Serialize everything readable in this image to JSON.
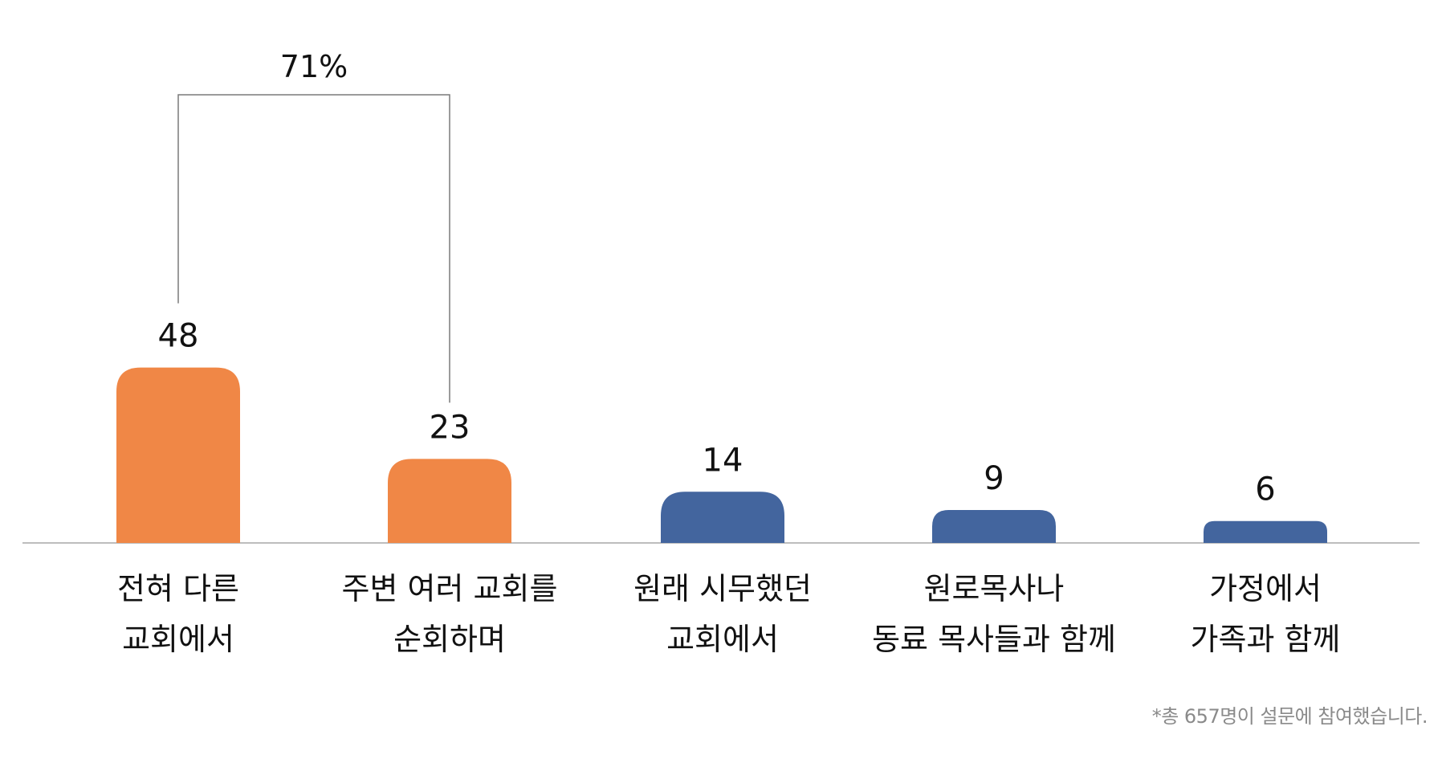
{
  "chart_data": {
    "type": "bar",
    "categories": [
      [
        "전혀 다른",
        "교회에서"
      ],
      [
        "주변 여러 교회를",
        "순회하며"
      ],
      [
        "원래 시무했던",
        "교회에서"
      ],
      [
        "원로목사나",
        "동료 목사들과 함께"
      ],
      [
        "가정에서",
        "가족과 함께"
      ]
    ],
    "values": [
      48,
      23,
      14,
      9,
      6
    ],
    "value_labels": [
      "48",
      "23",
      "14",
      "9",
      "6"
    ],
    "colors": [
      "#F08746",
      "#F08746",
      "#43659E",
      "#43659E",
      "#43659E"
    ],
    "ylim": [
      0,
      55
    ],
    "grid": false,
    "annotation": {
      "label": "71%",
      "from_index": 0,
      "to_index": 1
    },
    "title": "",
    "xlabel": "",
    "ylabel": ""
  },
  "footnote": "*총 657명이 설문에 참여했습니다."
}
